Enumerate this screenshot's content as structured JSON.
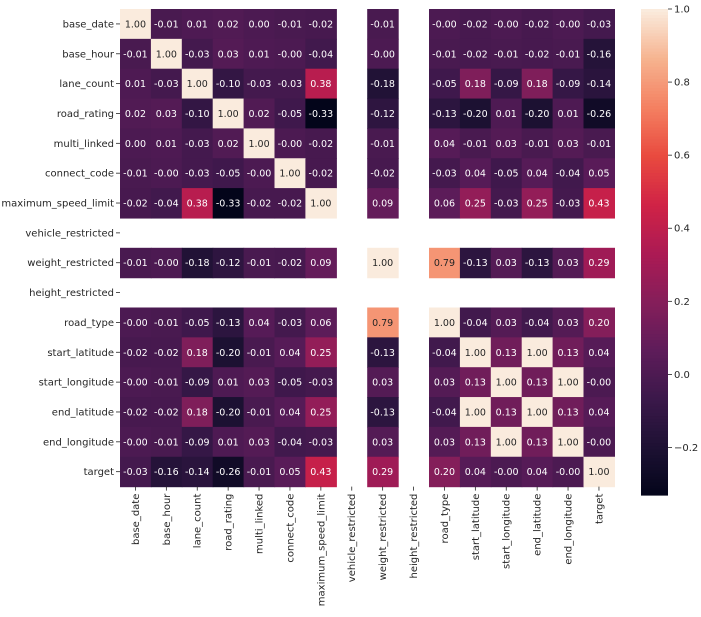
{
  "chart_data": {
    "type": "heatmap",
    "title": "",
    "colormap": "rocket",
    "labels": [
      "base_date",
      "base_hour",
      "lane_count",
      "road_rating",
      "multi_linked",
      "connect_code",
      "maximum_speed_limit",
      "vehicle_restricted",
      "weight_restricted",
      "height_restricted",
      "road_type",
      "start_latitude",
      "start_longitude",
      "end_latitude",
      "end_longitude",
      "target"
    ],
    "matrix": [
      [
        1.0,
        -0.01,
        0.01,
        0.02,
        0.0,
        -0.01,
        -0.02,
        null,
        -0.01,
        null,
        -0.0,
        -0.02,
        -0.0,
        -0.02,
        -0.0,
        -0.03
      ],
      [
        -0.01,
        1.0,
        -0.03,
        0.03,
        0.01,
        -0.0,
        -0.04,
        null,
        -0.0,
        null,
        -0.01,
        -0.02,
        -0.01,
        -0.02,
        -0.01,
        -0.16
      ],
      [
        0.01,
        -0.03,
        1.0,
        -0.1,
        -0.03,
        -0.03,
        0.38,
        null,
        -0.18,
        null,
        -0.05,
        0.18,
        -0.09,
        0.18,
        -0.09,
        -0.14
      ],
      [
        0.02,
        0.03,
        -0.1,
        1.0,
        0.02,
        -0.05,
        -0.33,
        null,
        -0.12,
        null,
        -0.13,
        -0.2,
        0.01,
        -0.2,
        0.01,
        -0.26
      ],
      [
        0.0,
        0.01,
        -0.03,
        0.02,
        1.0,
        -0.0,
        -0.02,
        null,
        -0.01,
        null,
        0.04,
        -0.01,
        0.03,
        -0.01,
        0.03,
        -0.01
      ],
      [
        -0.01,
        -0.0,
        -0.03,
        -0.05,
        -0.0,
        1.0,
        -0.02,
        null,
        -0.02,
        null,
        -0.03,
        0.04,
        -0.05,
        0.04,
        -0.04,
        0.05
      ],
      [
        -0.02,
        -0.04,
        0.38,
        -0.33,
        -0.02,
        -0.02,
        1.0,
        null,
        0.09,
        null,
        0.06,
        0.25,
        -0.03,
        0.25,
        -0.03,
        0.43
      ],
      [
        null,
        null,
        null,
        null,
        null,
        null,
        null,
        null,
        null,
        null,
        null,
        null,
        null,
        null,
        null,
        null
      ],
      [
        -0.01,
        -0.0,
        -0.18,
        -0.12,
        -0.01,
        -0.02,
        0.09,
        null,
        1.0,
        null,
        0.79,
        -0.13,
        0.03,
        -0.13,
        0.03,
        0.29
      ],
      [
        null,
        null,
        null,
        null,
        null,
        null,
        null,
        null,
        null,
        null,
        null,
        null,
        null,
        null,
        null,
        null
      ],
      [
        -0.0,
        -0.01,
        -0.05,
        -0.13,
        0.04,
        -0.03,
        0.06,
        null,
        0.79,
        null,
        1.0,
        -0.04,
        0.03,
        -0.04,
        0.03,
        0.2
      ],
      [
        -0.02,
        -0.02,
        0.18,
        -0.2,
        -0.01,
        0.04,
        0.25,
        null,
        -0.13,
        null,
        -0.04,
        1.0,
        0.13,
        1.0,
        0.13,
        0.04
      ],
      [
        -0.0,
        -0.01,
        -0.09,
        0.01,
        0.03,
        -0.05,
        -0.03,
        null,
        0.03,
        null,
        0.03,
        0.13,
        1.0,
        0.13,
        1.0,
        -0.0
      ],
      [
        -0.02,
        -0.02,
        0.18,
        -0.2,
        -0.01,
        0.04,
        0.25,
        null,
        -0.13,
        null,
        -0.04,
        1.0,
        0.13,
        1.0,
        0.13,
        0.04
      ],
      [
        -0.0,
        -0.01,
        -0.09,
        0.01,
        0.03,
        -0.04,
        -0.03,
        null,
        0.03,
        null,
        0.03,
        0.13,
        1.0,
        0.13,
        1.0,
        -0.0
      ],
      [
        -0.03,
        -0.16,
        -0.14,
        -0.26,
        -0.01,
        0.05,
        0.43,
        null,
        0.29,
        null,
        0.2,
        0.04,
        -0.0,
        0.04,
        -0.0,
        1.0
      ]
    ],
    "colorbar": {
      "vmin": -0.33,
      "vmax": 1.0,
      "ticks": [
        -0.2,
        0.0,
        0.2,
        0.4,
        0.6,
        0.8,
        1.0
      ],
      "tick_labels": [
        "−0.2",
        "0.0",
        "0.2",
        "0.4",
        "0.6",
        "0.8",
        "1.0"
      ]
    },
    "annotation_format": "0.00"
  }
}
